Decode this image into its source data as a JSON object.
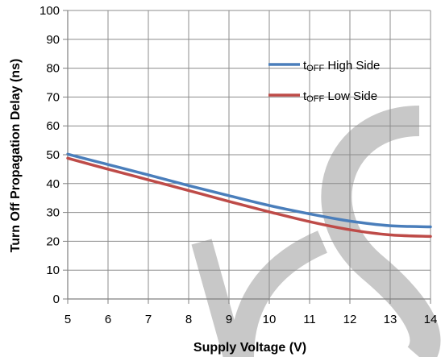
{
  "chart_data": {
    "type": "line",
    "xlabel": "Supply Voltage (V)",
    "ylabel": "Turn Off Propagation Delay (ns)",
    "xlim": [
      5,
      14
    ],
    "ylim": [
      0,
      100
    ],
    "x_ticks": [
      "5",
      "6",
      "7",
      "8",
      "9",
      "10",
      "11",
      "12",
      "13",
      "14"
    ],
    "y_ticks": [
      "0",
      "10",
      "20",
      "30",
      "40",
      "50",
      "60",
      "70",
      "80",
      "90",
      "100"
    ],
    "grid": true,
    "legend_position": "top-right",
    "x": [
      5,
      6,
      7,
      8,
      9,
      10,
      11,
      12,
      13,
      14
    ],
    "series": [
      {
        "name_prefix": "t",
        "name_sub": "OFF",
        "name_suffix": " High Side",
        "color": "#4a7ebb",
        "values": [
          50.2,
          46.6,
          43.0,
          39.3,
          35.8,
          32.4,
          29.5,
          27.0,
          25.4,
          25.0
        ]
      },
      {
        "name_prefix": "t",
        "name_sub": "OFF",
        "name_suffix": " Low Side",
        "color": "#be4b48",
        "values": [
          48.8,
          45.0,
          41.3,
          37.6,
          33.8,
          30.2,
          26.8,
          24.0,
          22.2,
          21.7
        ]
      }
    ],
    "watermark_color": "#c8c8c8"
  }
}
